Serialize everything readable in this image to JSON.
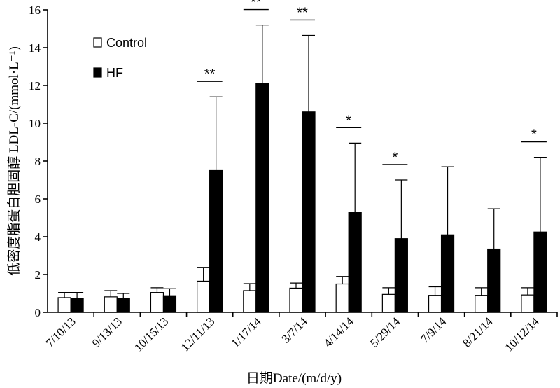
{
  "chart_data": {
    "type": "bar",
    "title": "",
    "xlabel": "日期Date/(m/d/y)",
    "ylabel": "低密度脂蛋白胆固醇 LDL-C/(mmol·L⁻¹)",
    "ylim": [
      0,
      16
    ],
    "yticks": [
      0,
      2,
      4,
      6,
      8,
      10,
      12,
      14,
      16
    ],
    "ytick_labels": [
      "0",
      "2",
      "4",
      "6",
      "8",
      "10",
      "12",
      "14",
      "16"
    ],
    "legend_position": "top-left",
    "categories": [
      "7/10/13",
      "9/13/13",
      "10/15/13",
      "12/11/13",
      "1/17/14",
      "3/7/14",
      "4/14/14",
      "5/29/14",
      "7/9/14",
      "8/21/14",
      "10/12/14"
    ],
    "series": [
      {
        "name": "Control",
        "fill": "#ffffff",
        "values": [
          0.78,
          0.82,
          1.05,
          1.65,
          1.15,
          1.28,
          1.5,
          0.95,
          0.9,
          0.9,
          0.92
        ],
        "error_upper": [
          1.05,
          1.15,
          1.3,
          2.38,
          1.52,
          1.55,
          1.9,
          1.3,
          1.35,
          1.3,
          1.3
        ]
      },
      {
        "name": "HF",
        "fill": "#000000",
        "values": [
          0.72,
          0.72,
          0.88,
          7.5,
          12.1,
          10.6,
          5.3,
          3.9,
          4.1,
          3.35,
          4.25
        ],
        "error_upper": [
          1.05,
          1.0,
          1.25,
          11.4,
          15.2,
          14.65,
          8.95,
          7.0,
          7.7,
          5.48,
          8.2
        ]
      }
    ],
    "significance": [
      "",
      "",
      "",
      "**",
      "**",
      "**",
      "*",
      "*",
      "",
      "",
      "*"
    ]
  }
}
